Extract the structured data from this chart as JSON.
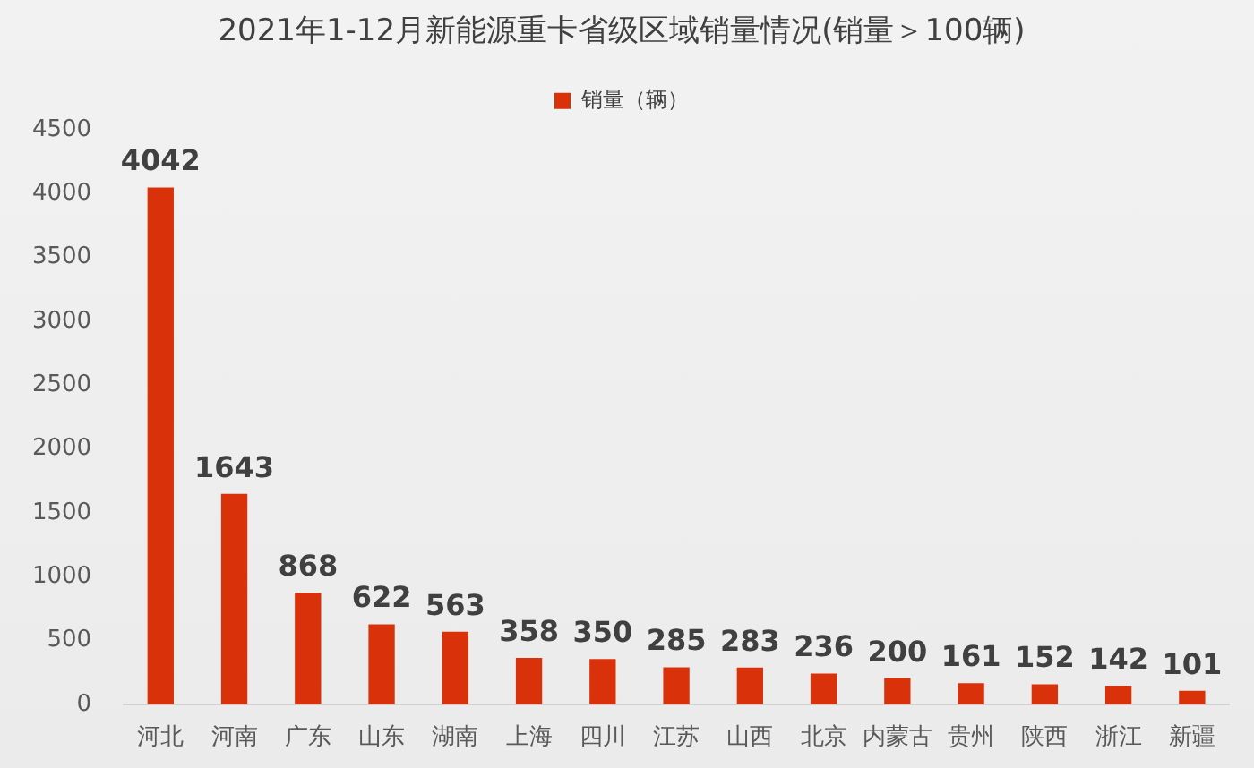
{
  "chart_data": {
    "type": "bar",
    "title": "2021年1-12月新能源重卡省级区域销量情况(销量＞100辆)",
    "categories": [
      "河北",
      "河南",
      "广东",
      "山东",
      "湖南",
      "上海",
      "四川",
      "江苏",
      "山西",
      "北京",
      "内蒙古",
      "贵州",
      "陕西",
      "浙江",
      "新疆"
    ],
    "series": [
      {
        "name": "销量（辆）",
        "color": "#d9320b",
        "values": [
          4042,
          1643,
          868,
          622,
          563,
          358,
          350,
          285,
          283,
          236,
          200,
          161,
          152,
          142,
          101
        ]
      }
    ],
    "ylim": [
      0,
      4500
    ],
    "yticks": [
      0,
      500,
      1000,
      1500,
      2000,
      2500,
      3000,
      3500,
      4000,
      4500
    ],
    "grid": false,
    "legend": "top",
    "data_labels": true
  }
}
